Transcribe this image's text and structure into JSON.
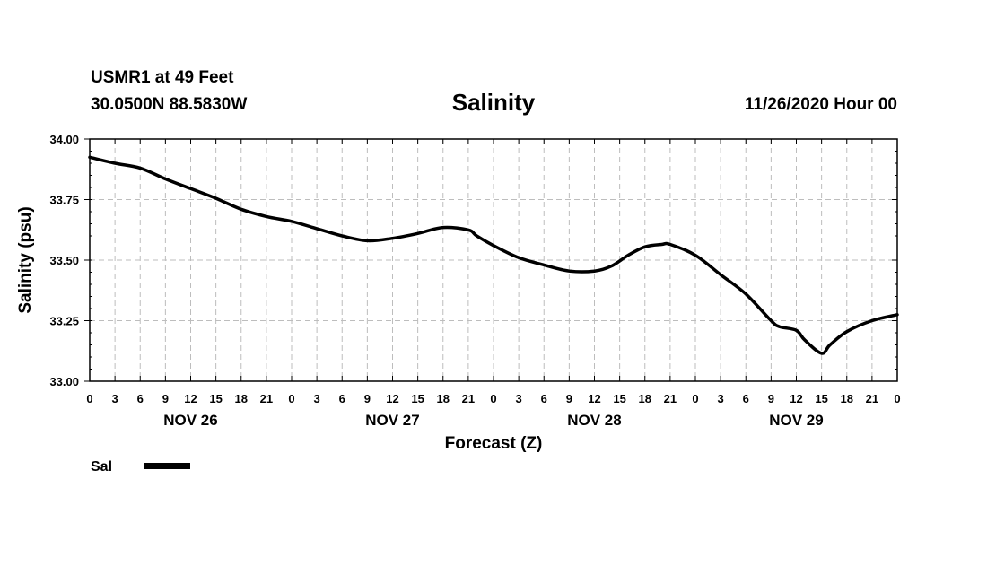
{
  "header": {
    "station": "USMR1 at 49 Feet",
    "coords": "30.0500N 88.5830W",
    "title": "Salinity",
    "timestamp": "11/26/2020 Hour 00"
  },
  "chart_data": {
    "type": "line",
    "title": "Salinity",
    "xlabel": "Forecast (Z)",
    "ylabel": "Salinity (psu)",
    "ylim": [
      33.0,
      34.0
    ],
    "xlim": [
      0,
      96
    ],
    "grid": true,
    "y_ticks": [
      "34.00",
      "33.75",
      "33.50",
      "33.25",
      "33.00"
    ],
    "y_tick_values": [
      34.0,
      33.75,
      33.5,
      33.25,
      33.0
    ],
    "x_tick_labels": [
      "0",
      "3",
      "6",
      "9",
      "12",
      "15",
      "18",
      "21",
      "0",
      "3",
      "6",
      "9",
      "12",
      "15",
      "18",
      "21",
      "0",
      "3",
      "6",
      "9",
      "12",
      "15",
      "18",
      "21",
      "0",
      "3",
      "6",
      "9",
      "12",
      "15",
      "18",
      "21",
      "0"
    ],
    "day_labels": [
      {
        "label": "NOV 26",
        "hour": 12
      },
      {
        "label": "NOV 27",
        "hour": 36
      },
      {
        "label": "NOV 28",
        "hour": 60
      },
      {
        "label": "NOV 29",
        "hour": 84
      }
    ],
    "line_color": "#000000",
    "series": [
      {
        "name": "Sal",
        "x": [
          0,
          3,
          6,
          9,
          12,
          15,
          18,
          21,
          24,
          27,
          30,
          33,
          36,
          39,
          42,
          45,
          46,
          48,
          51,
          54,
          57,
          60,
          62,
          64,
          66,
          68,
          69,
          72,
          75,
          78,
          81,
          82,
          84,
          85,
          87,
          88,
          90,
          93,
          96
        ],
        "values": [
          33.925,
          33.9,
          33.88,
          33.835,
          33.795,
          33.755,
          33.71,
          33.68,
          33.66,
          33.63,
          33.6,
          33.58,
          33.59,
          33.61,
          33.635,
          33.625,
          33.6,
          33.56,
          33.51,
          33.48,
          33.455,
          33.455,
          33.475,
          33.52,
          33.555,
          33.565,
          33.565,
          33.52,
          33.44,
          33.36,
          33.25,
          33.225,
          33.21,
          33.17,
          33.115,
          33.15,
          33.205,
          33.25,
          33.275
        ]
      }
    ]
  },
  "legend": {
    "label": "Sal"
  }
}
